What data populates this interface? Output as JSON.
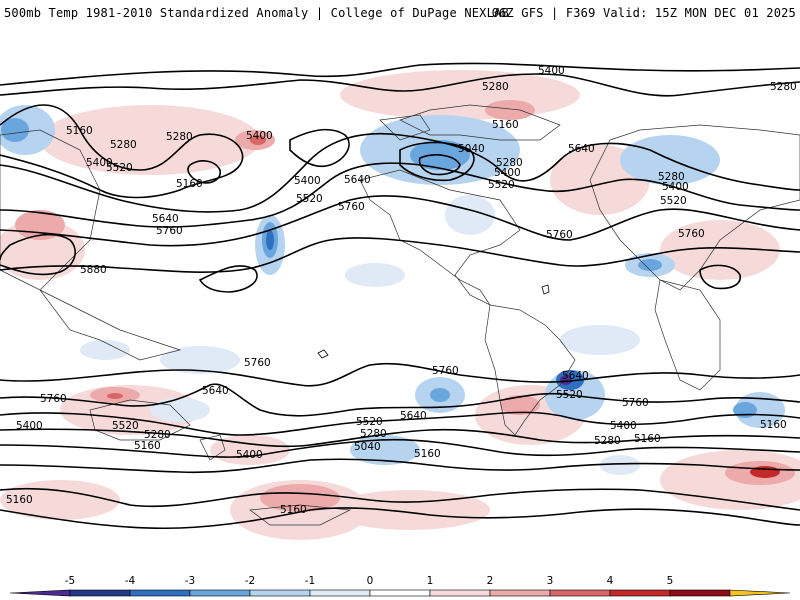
{
  "header": {
    "left_title": "500mb Temp 1981-2010 Standardized Anomaly | College of DuPage NEXLAB",
    "right_title": "06Z GFS | F369 Valid: 15Z MON DEC 01 2025"
  },
  "map": {
    "variable": "500mb temperature standardized anomaly",
    "contour_units": "geopotential height (dam*10)",
    "contour_labels": [
      {
        "text": "5400",
        "region": "north-pacific-top"
      },
      {
        "text": "5280",
        "region": "greenland"
      },
      {
        "text": "5280",
        "region": "siberia-east"
      },
      {
        "text": "5160",
        "region": "north-atlantic"
      },
      {
        "text": "5040",
        "region": "hudson-bay"
      },
      {
        "text": "5280",
        "region": "canada"
      },
      {
        "text": "5400",
        "region": "canada"
      },
      {
        "text": "5520",
        "region": "canada"
      },
      {
        "text": "5640",
        "region": "north-atlantic-east"
      },
      {
        "text": "5160",
        "region": "west-pacific"
      },
      {
        "text": "5280",
        "region": "west-pacific"
      },
      {
        "text": "5400",
        "region": "west-pacific"
      },
      {
        "text": "5520",
        "region": "west-pacific"
      },
      {
        "text": "5640",
        "region": "west-pacific"
      },
      {
        "text": "5760",
        "region": "west-pacific"
      },
      {
        "text": "5880",
        "region": "asia-south"
      },
      {
        "text": "5280",
        "region": "bering"
      },
      {
        "text": "5400",
        "region": "bering"
      },
      {
        "text": "5160",
        "region": "aleutian-low"
      },
      {
        "text": "5400",
        "region": "northeast-pacific"
      },
      {
        "text": "5520",
        "region": "northeast-pacific"
      },
      {
        "text": "5640",
        "region": "northeast-pacific"
      },
      {
        "text": "5760",
        "region": "northeast-pacific"
      },
      {
        "text": "5760",
        "region": "atlantic"
      },
      {
        "text": "5280",
        "region": "asia-north"
      },
      {
        "text": "5400",
        "region": "asia-north"
      },
      {
        "text": "5520",
        "region": "asia-north"
      },
      {
        "text": "5760",
        "region": "asia-central"
      },
      {
        "text": "5760",
        "region": "south-pacific-west"
      },
      {
        "text": "5640",
        "region": "south-pacific-west"
      },
      {
        "text": "5760",
        "region": "indian-ocean"
      },
      {
        "text": "5400",
        "region": "indian-ocean"
      },
      {
        "text": "5520",
        "region": "indian-ocean"
      },
      {
        "text": "5280",
        "region": "southern-ocean"
      },
      {
        "text": "5160",
        "region": "southern-ocean"
      },
      {
        "text": "5400",
        "region": "southern-ocean"
      },
      {
        "text": "5160",
        "region": "antarctica-west"
      },
      {
        "text": "5160",
        "region": "antarctica"
      },
      {
        "text": "5760",
        "region": "south-pacific"
      },
      {
        "text": "5640",
        "region": "south-pacific-east"
      },
      {
        "text": "5520",
        "region": "south-pacific"
      },
      {
        "text": "5280",
        "region": "south-pacific"
      },
      {
        "text": "5040",
        "region": "south-pacific"
      },
      {
        "text": "5160",
        "region": "south-pacific"
      },
      {
        "text": "5640",
        "region": "south-america"
      },
      {
        "text": "5520",
        "region": "south-america"
      },
      {
        "text": "5760",
        "region": "south-atlantic"
      },
      {
        "text": "5400",
        "region": "south-atlantic"
      },
      {
        "text": "5280",
        "region": "south-atlantic"
      },
      {
        "text": "5160",
        "region": "south-atlantic"
      },
      {
        "text": "5160",
        "region": "indian-ocean-south"
      }
    ]
  },
  "colorbar": {
    "ticks": [
      "-5",
      "-4",
      "-3",
      "-2",
      "-1",
      "0",
      "1",
      "2",
      "3",
      "4",
      "5"
    ],
    "colors": [
      "#4b2a91",
      "#243a86",
      "#2f6fc2",
      "#6aa6de",
      "#b6d3ef",
      "#dfeaf6",
      "#ffffff",
      "#f6dada",
      "#ecaaaa",
      "#d96767",
      "#c32a2a",
      "#8e0c18",
      "#f2c21d"
    ]
  }
}
